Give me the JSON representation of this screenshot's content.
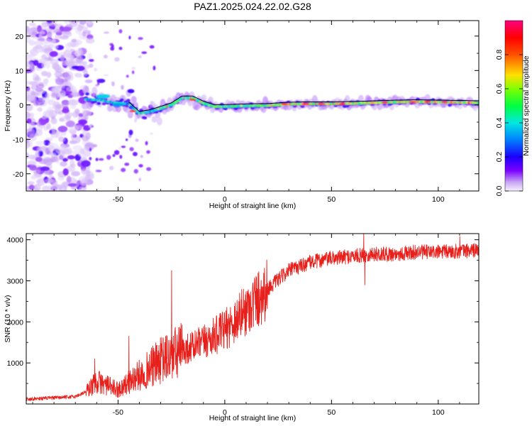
{
  "title": "PAZ1.2025.024.22.02.G28",
  "chart_data": [
    {
      "type": "heatmap",
      "xlabel": "Height of straight line (km)",
      "ylabel": "Frequency (Hz)",
      "xlim": [
        -93,
        119
      ],
      "ylim": [
        -25,
        24.5
      ],
      "xticks": [
        -50,
        0,
        50,
        100
      ],
      "yticks": [
        -20,
        -10,
        0,
        10,
        20
      ],
      "colorbar": {
        "label": "Normalized spectral amplitude",
        "range": [
          0,
          1
        ],
        "ticks": [
          "0.0",
          "0.2",
          "0.4",
          "0.6",
          "0.8"
        ],
        "colors": [
          "#d9c6f6",
          "#7a00ff",
          "#0000ff",
          "#00e5ff",
          "#00ff00",
          "#ffd800",
          "#ff0000",
          "#ff007f"
        ]
      },
      "ridge": {
        "x": [
          -93,
          -60,
          -50,
          -45,
          -40,
          -35,
          -30,
          -25,
          -20,
          -15,
          -10,
          -5,
          0,
          10,
          20,
          30,
          40,
          50,
          60,
          70,
          80,
          90,
          100,
          110,
          119
        ],
        "y": [
          2,
          1.5,
          0.5,
          0.3,
          -2.5,
          -2,
          -1,
          0,
          2,
          2,
          0.5,
          -0.5,
          -0.5,
          -0.3,
          -0.2,
          0.2,
          0.3,
          0.3,
          0.4,
          0.6,
          0.8,
          0.9,
          0.8,
          0.7,
          0.6
        ]
      }
    },
    {
      "type": "line",
      "xlabel": "Height of straight line (km)",
      "ylabel": "SNR (10 * v/v)",
      "xlim": [
        -93,
        119
      ],
      "ylim": [
        0,
        4150
      ],
      "xticks": [
        -50,
        0,
        50,
        100
      ],
      "yticks": [
        1000,
        2000,
        3000,
        4000
      ],
      "color": "#e8201c",
      "trend": {
        "x": [
          -93,
          -80,
          -70,
          -65,
          -60,
          -50,
          -40,
          -30,
          -20,
          -10,
          0,
          10,
          20,
          30,
          40,
          50,
          60,
          70,
          80,
          90,
          100,
          110,
          119
        ],
        "y": [
          120,
          150,
          180,
          300,
          550,
          350,
          700,
          1050,
          1300,
          1500,
          1800,
          2300,
          2800,
          3250,
          3450,
          3550,
          3600,
          3650,
          3650,
          3700,
          3700,
          3720,
          3750
        ]
      },
      "spikes": [
        {
          "x": -61,
          "y": 1100
        },
        {
          "x": -45,
          "y": 1650
        },
        {
          "x": -25,
          "y": 3250
        },
        {
          "x": 65,
          "y": 4150
        },
        {
          "x": 65.5,
          "y": 2900
        },
        {
          "x": 110,
          "y": 4080
        }
      ]
    }
  ]
}
